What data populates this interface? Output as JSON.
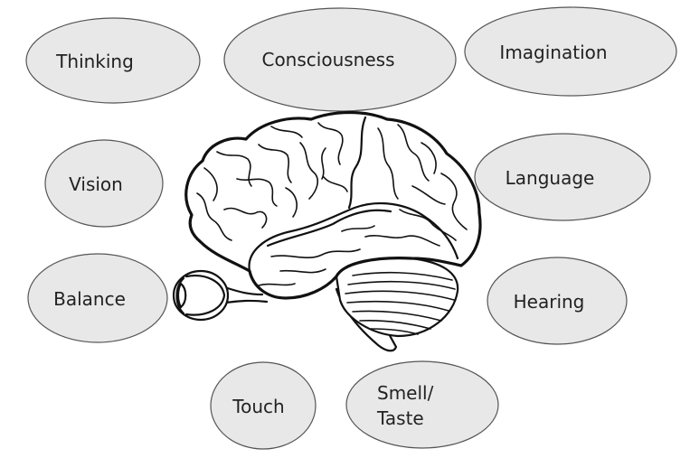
{
  "colors": {
    "bubble_fill": "#e8e8e8",
    "bubble_stroke": "#555555",
    "brain_stroke": "#111111",
    "cerebellum_fill": "#ffffff"
  },
  "bubbles": {
    "thinking": "Thinking",
    "consciousness": "Consciousness",
    "imagination": "Imagination",
    "vision": "Vision",
    "language": "Language",
    "balance": "Balance",
    "hearing": "Hearing",
    "touch": "Touch",
    "smell_line1": "Smell/",
    "smell_line2": "Taste"
  },
  "illustration": {
    "brain": "brain-illustration",
    "eye": "eye-illustration"
  }
}
